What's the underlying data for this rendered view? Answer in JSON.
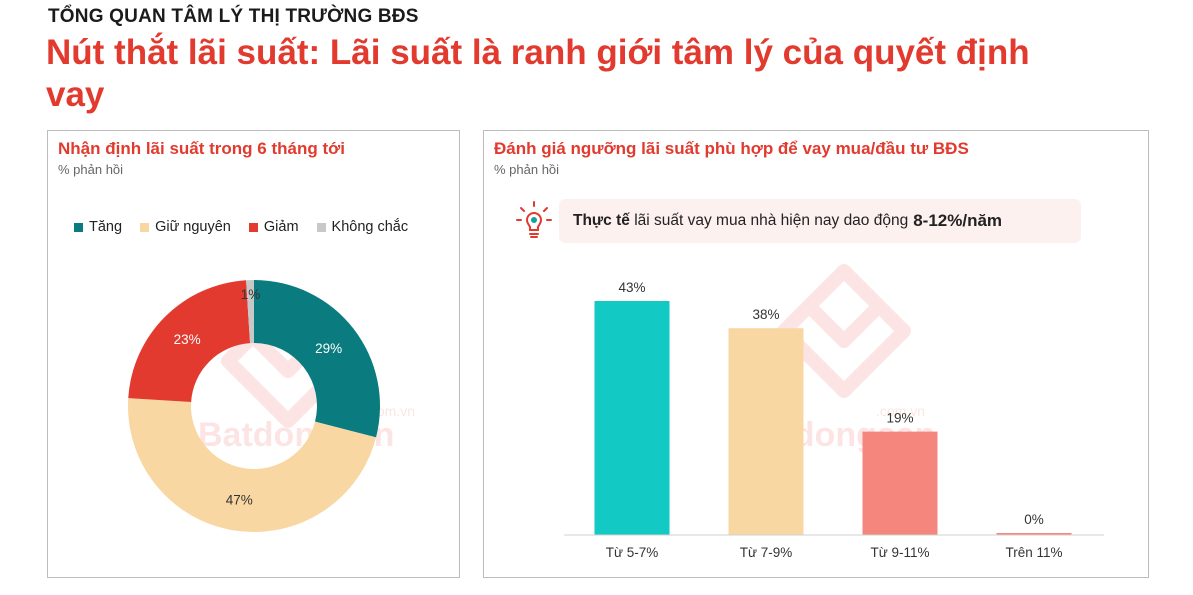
{
  "header": {
    "kicker": "TỔNG QUAN TÂM LÝ THỊ TRƯỜNG BĐS",
    "headline": "Nút thắt lãi suất: Lãi suất là ranh giới tâm lý của quyết định vay"
  },
  "watermark_text": "Batdongsan",
  "watermark_domain": ".com.vn",
  "left_panel": {
    "title": "Nhận định lãi suất trong 6 tháng tới",
    "subtitle": "% phản hồi"
  },
  "right_panel": {
    "title": "Đánh giá ngưỡng lãi suất phù hợp để vay mua/đầu tư BĐS",
    "subtitle": "% phản hồi",
    "callout": {
      "bold_lead": "Thực tế",
      "text": "lãi suất vay mua nhà hiện nay dao động",
      "highlight": "8-12%/năm",
      "icon": "lightbulb-icon"
    }
  },
  "chart_data": [
    {
      "type": "pie",
      "variant": "donut",
      "title": "Nhận định lãi suất trong 6 tháng tới",
      "subtitle": "% phản hồi",
      "legend_position": "top",
      "series": [
        {
          "name": "Tăng",
          "value": 29,
          "label": "29%",
          "color": "#0a7b7e"
        },
        {
          "name": "Giữ nguyên",
          "value": 47,
          "label": "47%",
          "color": "#f9d7a3"
        },
        {
          "name": "Giảm",
          "value": 23,
          "label": "23%",
          "color": "#e23a2e"
        },
        {
          "name": "Không chắc",
          "value": 1,
          "label": "1%",
          "color": "#c8c8c8"
        }
      ]
    },
    {
      "type": "bar",
      "title": "Đánh giá ngưỡng lãi suất phù hợp để vay mua/đầu tư BĐS",
      "subtitle": "% phản hồi",
      "categories": [
        "Từ 5-7%",
        "Từ 7-9%",
        "Từ 9-11%",
        "Trên 11%"
      ],
      "values": [
        43,
        38,
        19,
        0
      ],
      "labels": [
        "43%",
        "38%",
        "19%",
        "0%"
      ],
      "colors": [
        "#12c9c3",
        "#f9d7a3",
        "#f5867d",
        "#f5867d"
      ],
      "ylim": [
        0,
        43
      ],
      "grid": false
    }
  ]
}
